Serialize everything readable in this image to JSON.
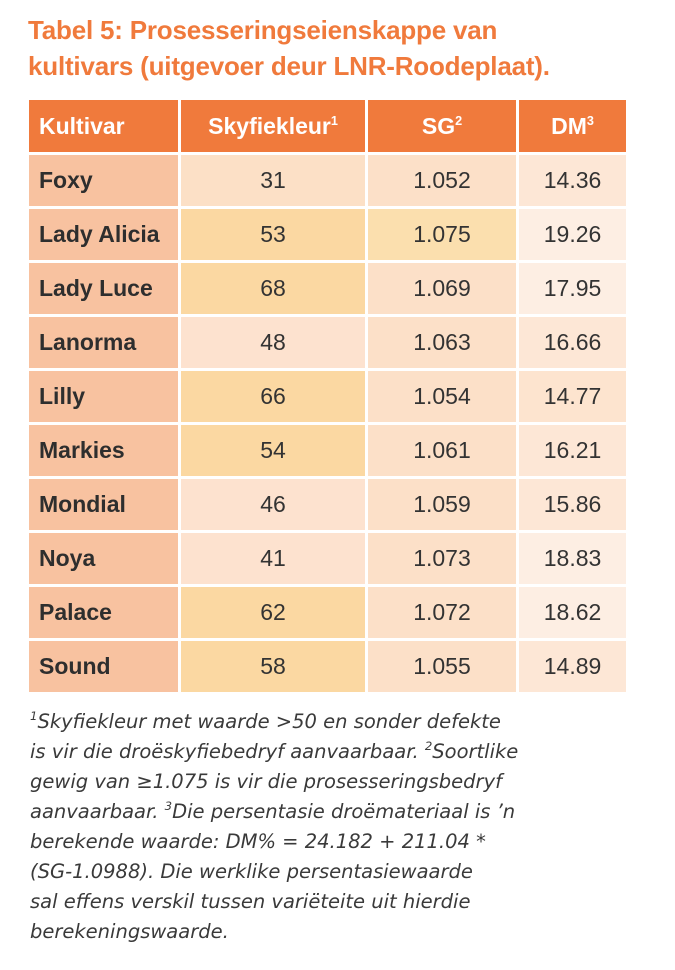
{
  "title": {
    "line1": "Tabel 5: Prosesseringseienskappe van",
    "line2": "kultivars (uitgevoer deur LNR-Roodeplaat)."
  },
  "table": {
    "headers": {
      "cultivar": "Kultivar",
      "skyfiekleur": "Skyfiekleur",
      "skyfiekleur_sup": "1",
      "sg": "SG",
      "sg_sup": "2",
      "dm": "DM",
      "dm_sup": "3"
    },
    "rows": [
      {
        "name": "Foxy",
        "skyfiekleur": "31",
        "sg": "1.052",
        "dm": "14.36"
      },
      {
        "name": "Lady Alicia",
        "skyfiekleur": "53",
        "sg": "1.075",
        "dm": "19.26"
      },
      {
        "name": "Lady Luce",
        "skyfiekleur": "68",
        "sg": "1.069",
        "dm": "17.95"
      },
      {
        "name": "Lanorma",
        "skyfiekleur": "48",
        "sg": "1.063",
        "dm": "16.66"
      },
      {
        "name": "Lilly",
        "skyfiekleur": "66",
        "sg": "1.054",
        "dm": "14.77"
      },
      {
        "name": "Markies",
        "skyfiekleur": "54",
        "sg": "1.061",
        "dm": "16.21"
      },
      {
        "name": "Mondial",
        "skyfiekleur": "46",
        "sg": "1.059",
        "dm": "15.86"
      },
      {
        "name": "Noya",
        "skyfiekleur": "41",
        "sg": "1.073",
        "dm": "18.83"
      },
      {
        "name": "Palace",
        "skyfiekleur": "62",
        "sg": "1.072",
        "dm": "18.62"
      },
      {
        "name": "Sound",
        "skyfiekleur": "58",
        "sg": "1.055",
        "dm": "14.89"
      }
    ]
  },
  "footnote": {
    "sup1": "1",
    "line1": "Skyfiekleur met waarde >50 en sonder defekte",
    "line2a": "is vir die droëskyfiebedryf aanvaarbaar. ",
    "sup2": "2",
    "line2b": "Soortlike",
    "line3": "gewig van ≥1.075 is vir die prosesseringsbedryf",
    "line4a": "aanvaarbaar. ",
    "sup3": "3",
    "line4b": "Die persentasie droëmateriaal is ’n",
    "line5": "berekende waarde: DM% = 24.182 + 211.04 *",
    "line6": "(SG-1.0988). Die werklike persentasiewaarde",
    "line7": "sal effens verskil tussen variëteite uit hierdie",
    "line8": "berekeningswaarde."
  },
  "colors": {
    "accent": "#f07a3c",
    "header_text": "#ffffff",
    "name_cell": "#f8c2a0",
    "highlight": "#fbd8a2"
  }
}
